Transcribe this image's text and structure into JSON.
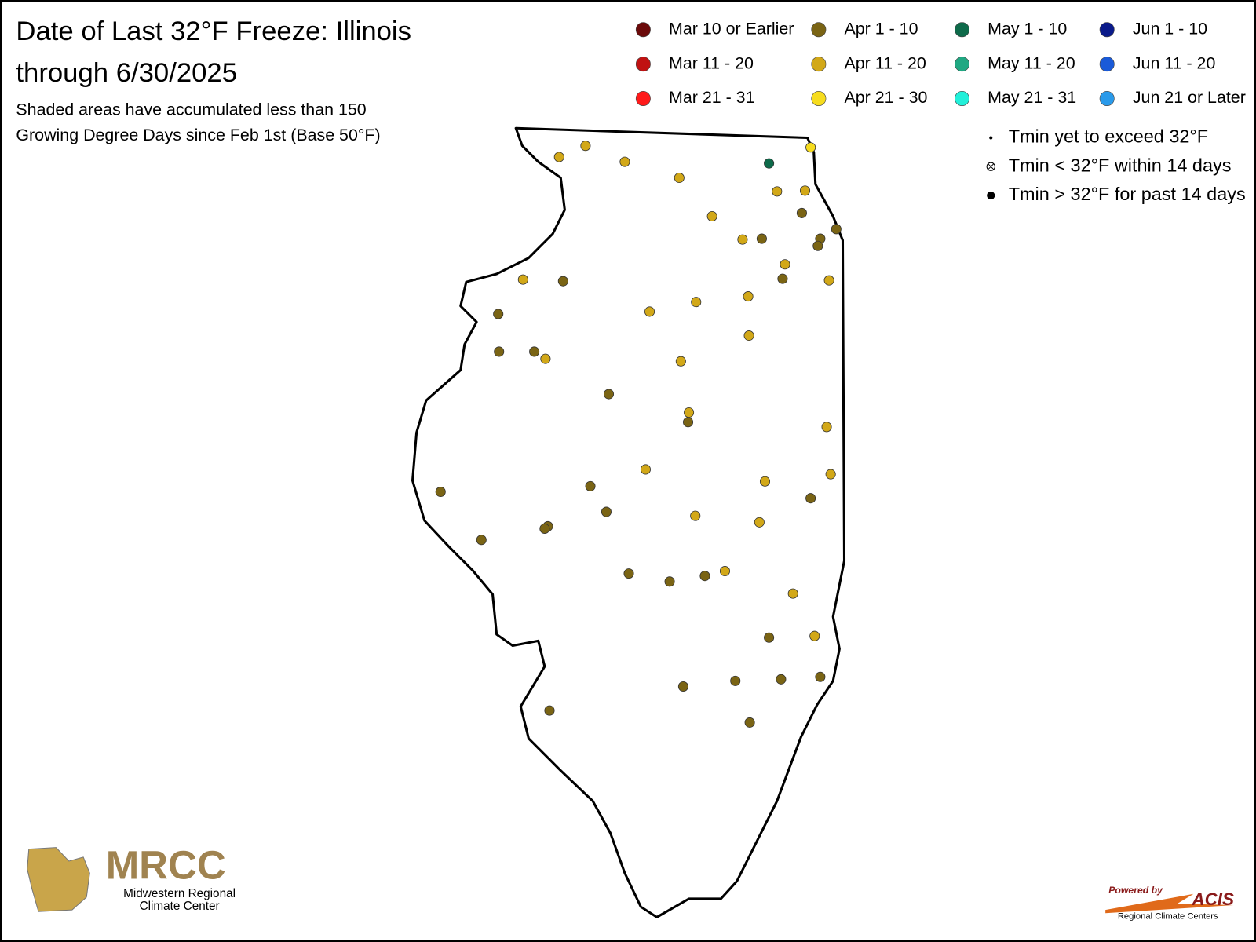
{
  "header": {
    "title": "Date of Last 32°F Freeze: Illinois",
    "subtitle": "through 6/30/2025",
    "note_1": "Shaded areas have accumulated less than 150",
    "note_2": "Growing Degree Days since Feb 1st (Base 50°F)"
  },
  "legend": {
    "items": [
      {
        "label": "Mar 10 or Earlier",
        "color": "#6b0a0a"
      },
      {
        "label": "Mar 11 - 20",
        "color": "#c01212"
      },
      {
        "label": "Mar 21 - 31",
        "color": "#ff1a1a"
      },
      {
        "label": "Apr 1 - 10",
        "color": "#7a6414"
      },
      {
        "label": "Apr 11 - 20",
        "color": "#d2a818"
      },
      {
        "label": "Apr 21 - 30",
        "color": "#f6dc1e"
      },
      {
        "label": "May 1 - 10",
        "color": "#0e6a4a"
      },
      {
        "label": "May 11 - 20",
        "color": "#20a882"
      },
      {
        "label": "May 21 - 31",
        "color": "#22f0da"
      },
      {
        "label": "Jun 1 - 10",
        "color": "#0a1a8a"
      },
      {
        "label": "Jun 11 - 20",
        "color": "#1a5ad8"
      },
      {
        "label": "Jun 21 or Later",
        "color": "#2a9aea"
      }
    ],
    "symbols": [
      "Tmin yet to exceed 32°F",
      "Tmin < 32°F within 14 days",
      "Tmin > 32°F for past 14 days"
    ]
  },
  "stations": [
    4,
    4,
    4,
    4,
    6,
    5,
    4,
    4,
    4,
    3,
    3,
    4,
    3,
    3,
    3,
    4,
    3,
    4,
    4,
    3,
    3,
    4,
    4,
    4,
    4,
    3,
    3,
    4,
    4,
    3,
    4,
    3,
    4,
    4,
    3,
    4,
    4,
    3,
    3,
    3,
    4,
    4,
    3,
    3,
    3,
    3,
    3,
    3,
    4,
    4,
    3,
    4,
    3,
    3,
    3,
    3,
    3,
    3
  ],
  "logos": {
    "mrcc": "MRCC",
    "mrcc_line_1": "Midwestern Regional",
    "mrcc_line_2": "Climate Center",
    "acis_powered": "Powered by",
    "acis": "ACIS",
    "acis_sub": "Regional Climate Centers"
  }
}
